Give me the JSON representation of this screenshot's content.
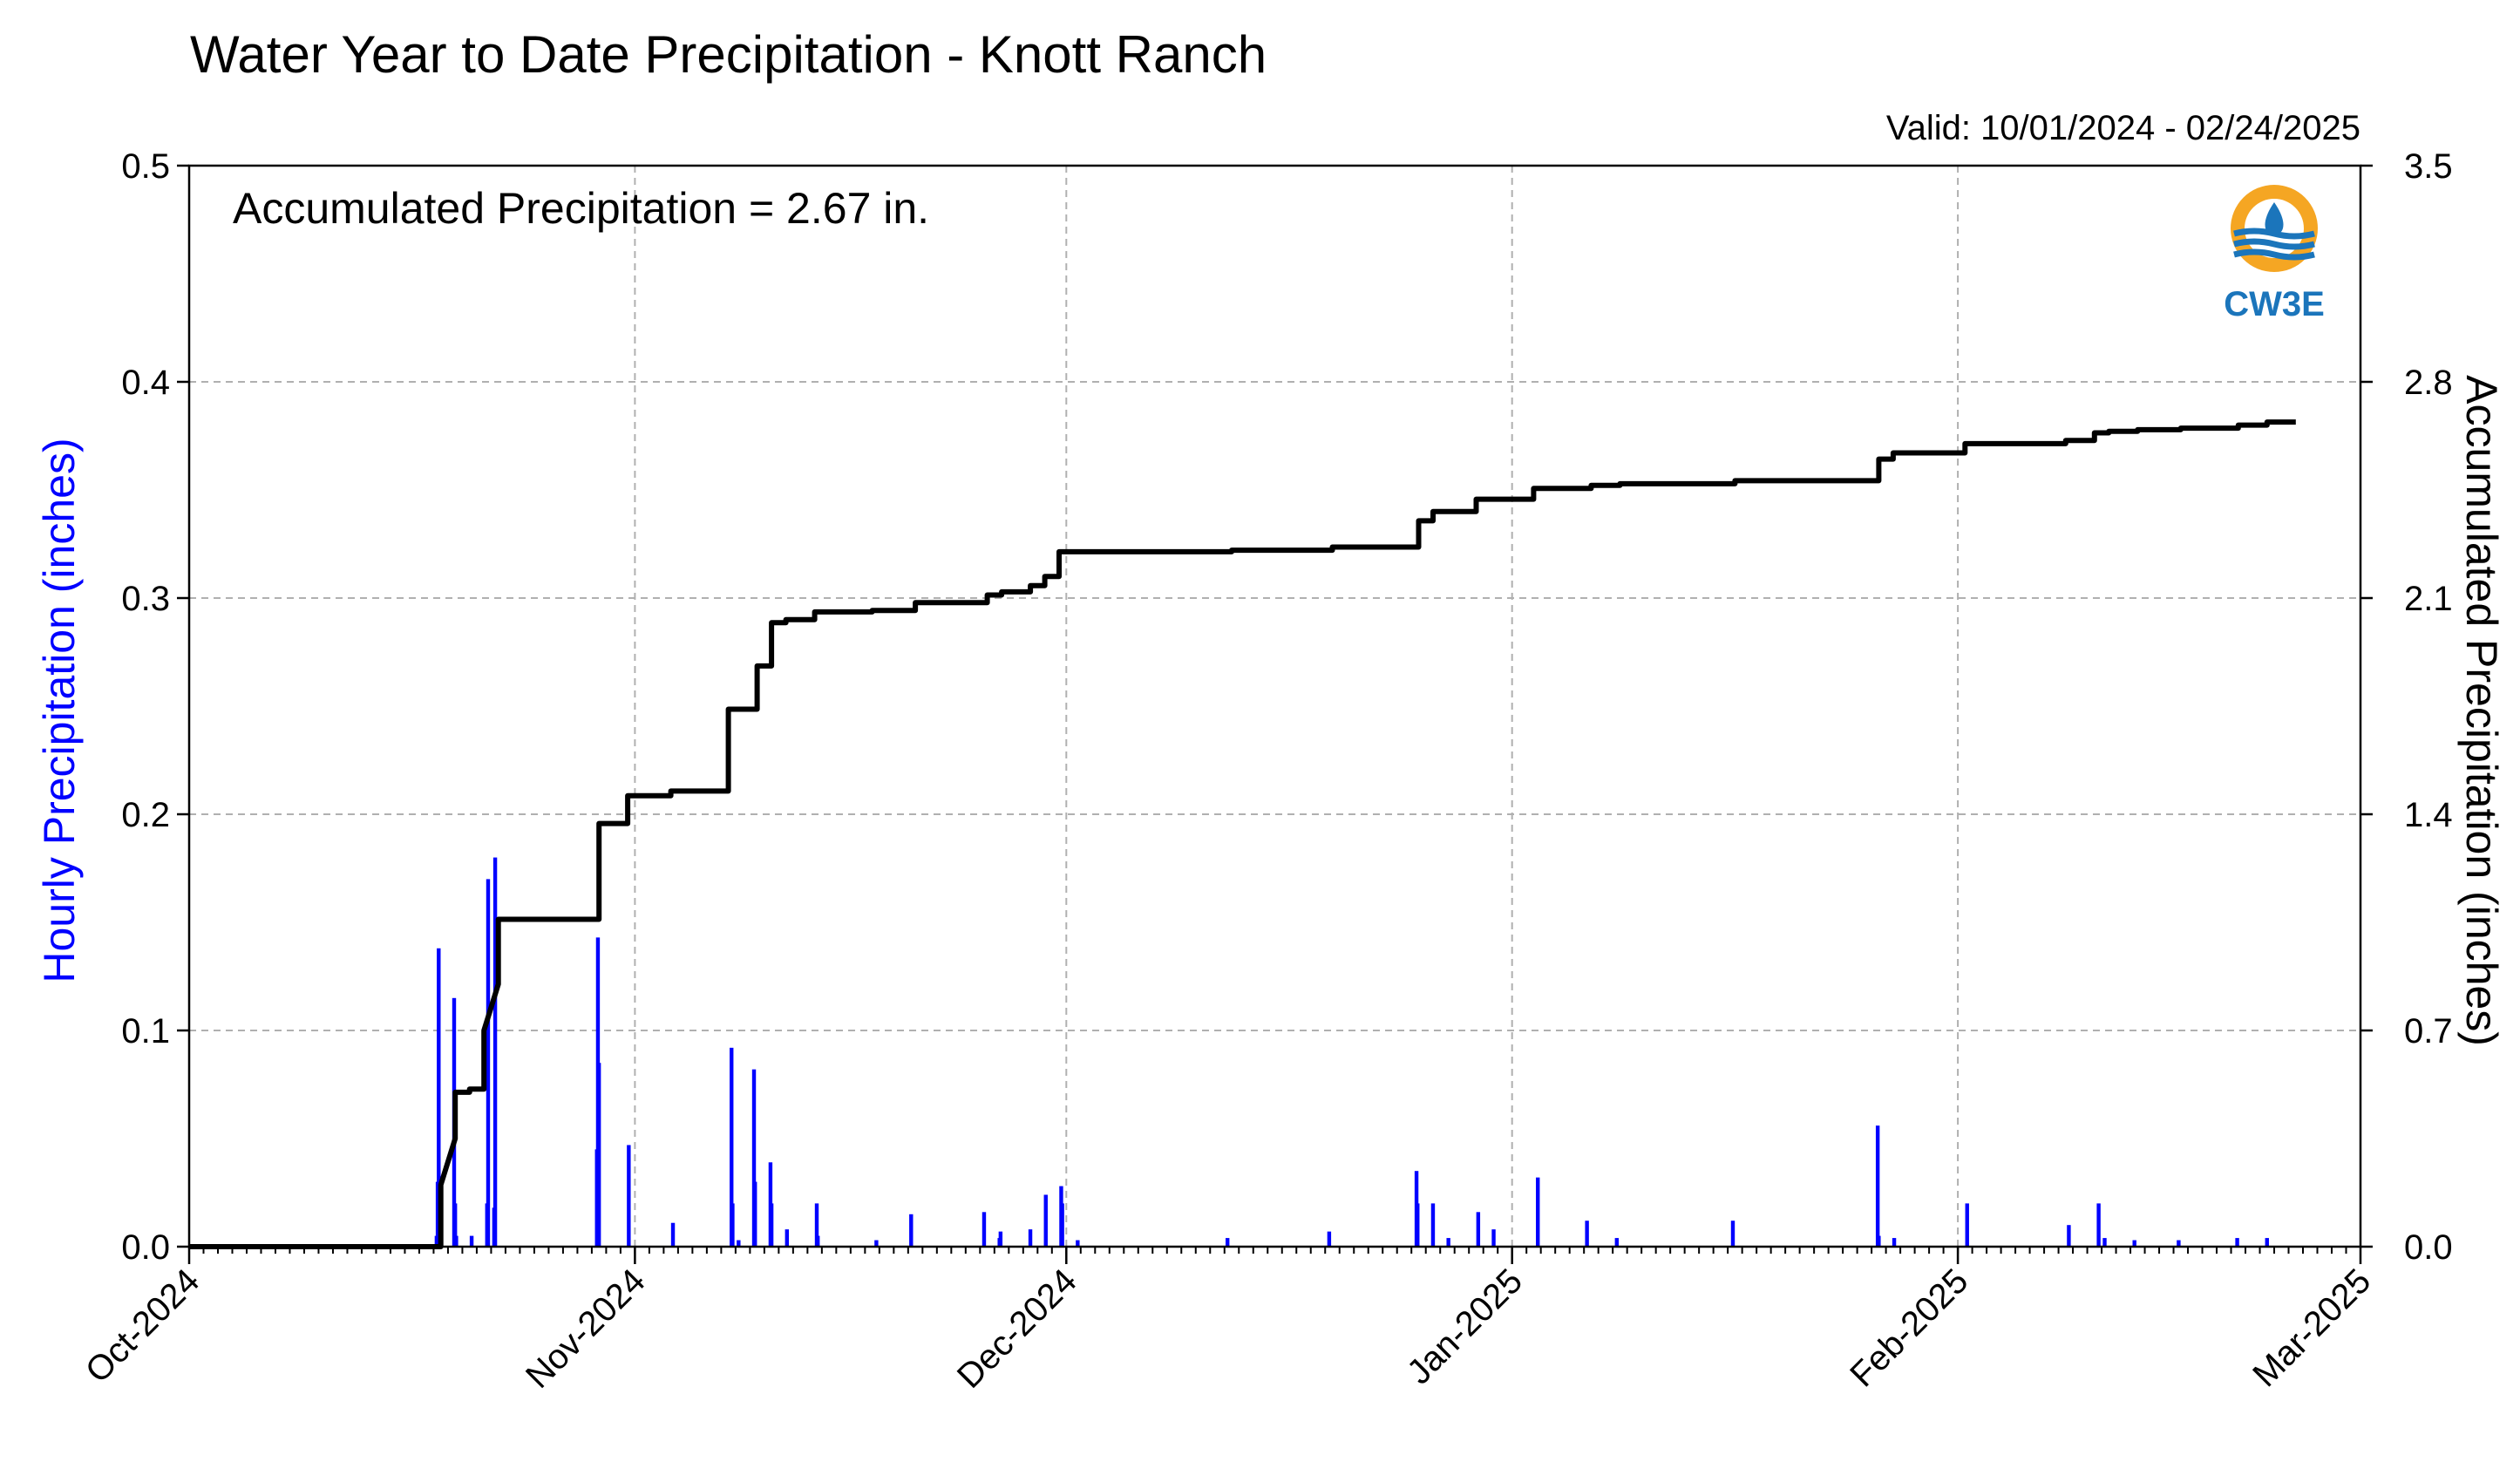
{
  "title": "Water Year to Date Precipitation - Knott Ranch",
  "valid_label": "Valid: 10/01/2024 - 02/24/2025",
  "accum_label": "Accumulated Precipitation = 2.67 in.",
  "logo_text": "CW3E",
  "colors": {
    "hourly": "#0000ff",
    "accumulated": "#000000",
    "grid": "#b0b0b0",
    "logo_orange": "#f5a623",
    "logo_blue": "#1b75bb"
  },
  "chart_data": {
    "type": "bar",
    "x_axis": {
      "type": "date",
      "range": [
        "2024-10-01",
        "2025-03-01"
      ],
      "tick_labels": [
        "Oct-2024",
        "Nov-2024",
        "Dec-2024",
        "Jan-2025",
        "Feb-2025",
        "Mar-2025"
      ],
      "tick_dates": [
        "2024-10-01",
        "2024-11-01",
        "2024-12-01",
        "2025-01-01",
        "2025-02-01",
        "2025-03-01"
      ],
      "minor_ticks": "daily"
    },
    "y_left": {
      "label": "Hourly Precipitation (inches)",
      "range": [
        0,
        0.5
      ],
      "ticks": [
        "0.0",
        "0.1",
        "0.2",
        "0.3",
        "0.4",
        "0.5"
      ]
    },
    "y_right": {
      "label": "Accumulated Precipitation (inches)",
      "range": [
        0,
        3.5
      ],
      "ticks": [
        "0.0",
        "0.7",
        "1.4",
        "2.1",
        "2.8",
        "3.5"
      ]
    },
    "grid": true,
    "series": [
      {
        "type": "bar",
        "axis": "left",
        "color": "#0000ff",
        "points": [
          [
            "2024-10-18",
            0.005
          ],
          [
            "2024-10-18",
            0.03
          ],
          [
            "2024-10-18",
            0.138
          ],
          [
            "2024-10-19",
            0.115
          ],
          [
            "2024-10-19",
            0.02
          ],
          [
            "2024-10-19",
            0.005
          ],
          [
            "2024-10-20",
            0.005
          ],
          [
            "2024-10-21",
            0.02
          ],
          [
            "2024-10-21",
            0.17
          ],
          [
            "2024-10-22",
            0.018
          ],
          [
            "2024-10-22",
            0.18
          ],
          [
            "2024-10-29",
            0.045
          ],
          [
            "2024-10-29",
            0.143
          ],
          [
            "2024-10-29",
            0.085
          ],
          [
            "2024-10-31",
            0.047
          ],
          [
            "2024-11-03",
            0.011
          ],
          [
            "2024-11-07",
            0.092
          ],
          [
            "2024-11-07",
            0.02
          ],
          [
            "2024-11-08",
            0.003
          ],
          [
            "2024-11-09",
            0.082
          ],
          [
            "2024-11-09",
            0.03
          ],
          [
            "2024-11-10",
            0.039
          ],
          [
            "2024-11-10",
            0.02
          ],
          [
            "2024-11-11",
            0.008
          ],
          [
            "2024-11-13",
            0.02
          ],
          [
            "2024-11-13",
            0.005
          ],
          [
            "2024-11-17",
            0.003
          ],
          [
            "2024-11-20",
            0.015
          ],
          [
            "2024-11-25",
            0.016
          ],
          [
            "2024-11-26",
            0.004
          ],
          [
            "2024-11-26",
            0.007
          ],
          [
            "2024-11-28",
            0.008
          ],
          [
            "2024-11-29",
            0.024
          ],
          [
            "2024-11-30",
            0.028
          ],
          [
            "2024-11-30",
            0.02
          ],
          [
            "2024-12-01",
            0.003
          ],
          [
            "2024-12-12",
            0.004
          ],
          [
            "2024-12-19",
            0.007
          ],
          [
            "2024-12-25",
            0.035
          ],
          [
            "2024-12-25",
            0.02
          ],
          [
            "2024-12-26",
            0.02
          ],
          [
            "2024-12-27",
            0.004
          ],
          [
            "2024-12-29",
            0.016
          ],
          [
            "2024-12-30",
            0.008
          ],
          [
            "2025-01-02",
            0.032
          ],
          [
            "2025-01-06",
            0.012
          ],
          [
            "2025-01-08",
            0.004
          ],
          [
            "2025-01-16",
            0.012
          ],
          [
            "2025-01-26",
            0.056
          ],
          [
            "2025-01-26",
            0.005
          ],
          [
            "2025-01-27",
            0.004
          ],
          [
            "2025-02-01",
            0.02
          ],
          [
            "2025-02-08",
            0.01
          ],
          [
            "2025-02-10",
            0.02
          ],
          [
            "2025-02-11",
            0.004
          ],
          [
            "2025-02-13",
            0.003
          ],
          [
            "2025-02-16",
            0.003
          ],
          [
            "2025-02-20",
            0.004
          ],
          [
            "2025-02-22",
            0.004
          ]
        ]
      },
      {
        "type": "line",
        "axis": "right",
        "color": "#000000",
        "points": [
          [
            "2024-10-01",
            0.0
          ],
          [
            "2024-10-18",
            0.0
          ],
          [
            "2024-10-18",
            0.05
          ],
          [
            "2024-10-18",
            0.2
          ],
          [
            "2024-10-19",
            0.35
          ],
          [
            "2024-10-19",
            0.5
          ],
          [
            "2024-10-20",
            0.5
          ],
          [
            "2024-10-20",
            0.51
          ],
          [
            "2024-10-21",
            0.51
          ],
          [
            "2024-10-21",
            0.7
          ],
          [
            "2024-10-22",
            0.85
          ],
          [
            "2024-10-22",
            1.06
          ],
          [
            "2024-10-29",
            1.06
          ],
          [
            "2024-10-29",
            1.14
          ],
          [
            "2024-10-29",
            1.37
          ],
          [
            "2024-10-31",
            1.37
          ],
          [
            "2024-10-31",
            1.46
          ],
          [
            "2024-11-03",
            1.46
          ],
          [
            "2024-11-03",
            1.475
          ],
          [
            "2024-11-07",
            1.475
          ],
          [
            "2024-11-07",
            1.74
          ],
          [
            "2024-11-09",
            1.74
          ],
          [
            "2024-11-09",
            1.88
          ],
          [
            "2024-11-10",
            1.88
          ],
          [
            "2024-11-10",
            2.02
          ],
          [
            "2024-11-11",
            2.02
          ],
          [
            "2024-11-11",
            2.03
          ],
          [
            "2024-11-13",
            2.03
          ],
          [
            "2024-11-13",
            2.055
          ],
          [
            "2024-11-17",
            2.055
          ],
          [
            "2024-11-17",
            2.06
          ],
          [
            "2024-11-20",
            2.06
          ],
          [
            "2024-11-20",
            2.085
          ],
          [
            "2024-11-25",
            2.085
          ],
          [
            "2024-11-25",
            2.11
          ],
          [
            "2024-11-26",
            2.11
          ],
          [
            "2024-11-26",
            2.12
          ],
          [
            "2024-11-28",
            2.12
          ],
          [
            "2024-11-28",
            2.14
          ],
          [
            "2024-11-29",
            2.14
          ],
          [
            "2024-11-29",
            2.17
          ],
          [
            "2024-11-30",
            2.17
          ],
          [
            "2024-11-30",
            2.25
          ],
          [
            "2024-12-12",
            2.25
          ],
          [
            "2024-12-12",
            2.255
          ],
          [
            "2024-12-19",
            2.255
          ],
          [
            "2024-12-19",
            2.265
          ],
          [
            "2024-12-25",
            2.265
          ],
          [
            "2024-12-25",
            2.35
          ],
          [
            "2024-12-26",
            2.35
          ],
          [
            "2024-12-26",
            2.38
          ],
          [
            "2024-12-29",
            2.38
          ],
          [
            "2024-12-29",
            2.42
          ],
          [
            "2025-01-02",
            2.42
          ],
          [
            "2025-01-02",
            2.455
          ],
          [
            "2025-01-06",
            2.455
          ],
          [
            "2025-01-06",
            2.465
          ],
          [
            "2025-01-08",
            2.465
          ],
          [
            "2025-01-08",
            2.47
          ],
          [
            "2025-01-16",
            2.47
          ],
          [
            "2025-01-16",
            2.48
          ],
          [
            "2025-01-26",
            2.48
          ],
          [
            "2025-01-26",
            2.55
          ],
          [
            "2025-01-27",
            2.55
          ],
          [
            "2025-01-27",
            2.57
          ],
          [
            "2025-02-01",
            2.57
          ],
          [
            "2025-02-01",
            2.6
          ],
          [
            "2025-02-08",
            2.6
          ],
          [
            "2025-02-08",
            2.61
          ],
          [
            "2025-02-10",
            2.61
          ],
          [
            "2025-02-10",
            2.635
          ],
          [
            "2025-02-11",
            2.635
          ],
          [
            "2025-02-11",
            2.64
          ],
          [
            "2025-02-13",
            2.64
          ],
          [
            "2025-02-13",
            2.645
          ],
          [
            "2025-02-16",
            2.645
          ],
          [
            "2025-02-16",
            2.65
          ],
          [
            "2025-02-20",
            2.65
          ],
          [
            "2025-02-20",
            2.66
          ],
          [
            "2025-02-22",
            2.66
          ],
          [
            "2025-02-22",
            2.67
          ],
          [
            "2025-02-24",
            2.67
          ]
        ]
      }
    ]
  }
}
